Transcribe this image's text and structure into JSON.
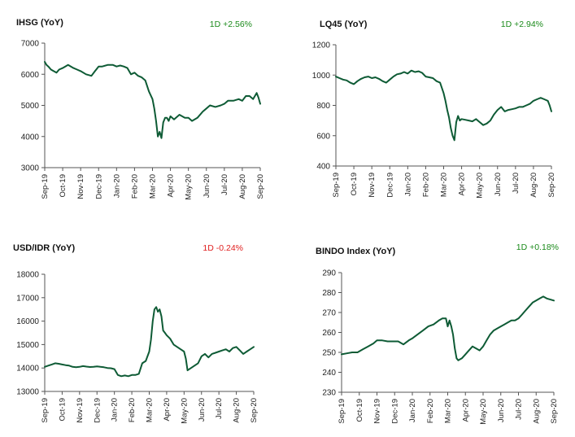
{
  "colors": {
    "line": "#0e5b35",
    "positive": "#1a8a1a",
    "negative": "#e02020"
  },
  "chart_data": [
    {
      "type": "line",
      "title": "IHSG (YoY)",
      "change_label": "1D +2.56%",
      "change_direction": "positive",
      "ylim": [
        3000,
        7000
      ],
      "yticks": [
        3000,
        4000,
        5000,
        6000,
        7000
      ],
      "xlabels": [
        "Sep-19",
        "Oct-19",
        "Nov-19",
        "Dec-19",
        "Jan-20",
        "Feb-20",
        "Mar-20",
        "Apr-20",
        "May-20",
        "Jun-20",
        "Jul-20",
        "Aug-20",
        "Sep-20"
      ],
      "series": [
        {
          "x": [
            0,
            0.1,
            0.2,
            0.35,
            0.5,
            0.65,
            0.8,
            1.0,
            1.3,
            1.6,
            1.8,
            2.0,
            2.3,
            2.6,
            2.8,
            3.0,
            3.2,
            3.5,
            3.8,
            4.0,
            4.2,
            4.4,
            4.6,
            4.8,
            5.0,
            5.2,
            5.4,
            5.6,
            5.8,
            6.0,
            6.1,
            6.2,
            6.3,
            6.4,
            6.5,
            6.6,
            6.7,
            6.8,
            6.9,
            7.0,
            7.2,
            7.5,
            7.8,
            8.0,
            8.2,
            8.5,
            8.8,
            9.0,
            9.2,
            9.5,
            9.8,
            10.0,
            10.2,
            10.5,
            10.8,
            11.0,
            11.2,
            11.4,
            11.6,
            11.8,
            11.9,
            12.0
          ],
          "y": [
            6400,
            6300,
            6250,
            6150,
            6100,
            6050,
            6150,
            6200,
            6300,
            6200,
            6150,
            6100,
            6000,
            5950,
            6100,
            6250,
            6250,
            6300,
            6300,
            6250,
            6280,
            6250,
            6200,
            6000,
            6050,
            5950,
            5900,
            5800,
            5450,
            5200,
            4900,
            4500,
            4000,
            4150,
            3950,
            4450,
            4600,
            4600,
            4500,
            4650,
            4550,
            4700,
            4600,
            4600,
            4500,
            4600,
            4800,
            4900,
            5000,
            4950,
            5000,
            5050,
            5150,
            5150,
            5200,
            5150,
            5300,
            5300,
            5200,
            5400,
            5250,
            5050
          ]
        }
      ]
    },
    {
      "type": "line",
      "title": "LQ45 (YoY)",
      "change_label": "1D +2.94%",
      "change_direction": "positive",
      "ylim": [
        400,
        1200
      ],
      "yticks": [
        400,
        600,
        800,
        1000,
        1200
      ],
      "xlabels": [
        "Sep-19",
        "Oct-19",
        "Nov-19",
        "Dec-19",
        "Jan-20",
        "Feb-20",
        "Mar-20",
        "Apr-20",
        "May-20",
        "Jun-20",
        "Jul-20",
        "Aug-20",
        "Sep-20"
      ],
      "series": [
        {
          "x": [
            0,
            0.2,
            0.4,
            0.6,
            0.8,
            1.0,
            1.2,
            1.4,
            1.6,
            1.8,
            2.0,
            2.2,
            2.4,
            2.6,
            2.8,
            3.0,
            3.2,
            3.4,
            3.6,
            3.8,
            4.0,
            4.2,
            4.4,
            4.6,
            4.8,
            5.0,
            5.2,
            5.4,
            5.6,
            5.8,
            6.0,
            6.1,
            6.2,
            6.3,
            6.4,
            6.5,
            6.6,
            6.7,
            6.8,
            6.9,
            7.0,
            7.2,
            7.4,
            7.6,
            7.8,
            8.0,
            8.2,
            8.4,
            8.6,
            8.8,
            9.0,
            9.2,
            9.4,
            9.6,
            9.8,
            10.0,
            10.2,
            10.4,
            10.6,
            10.8,
            11.0,
            11.2,
            11.4,
            11.6,
            11.8,
            11.9,
            12.0
          ],
          "y": [
            990,
            980,
            970,
            965,
            950,
            940,
            960,
            975,
            985,
            990,
            980,
            985,
            975,
            960,
            950,
            970,
            990,
            1005,
            1010,
            1020,
            1010,
            1030,
            1020,
            1025,
            1015,
            990,
            985,
            980,
            960,
            950,
            880,
            830,
            770,
            720,
            650,
            600,
            570,
            690,
            730,
            700,
            710,
            705,
            700,
            695,
            710,
            690,
            670,
            680,
            700,
            740,
            770,
            790,
            760,
            770,
            775,
            780,
            790,
            790,
            800,
            810,
            830,
            840,
            850,
            840,
            830,
            800,
            760
          ]
        }
      ]
    },
    {
      "type": "line",
      "title": "USD/IDR  (YoY)",
      "change_label": "1D -0.24%",
      "change_direction": "negative",
      "ylim": [
        13000,
        18000
      ],
      "yticks": [
        13000,
        14000,
        15000,
        16000,
        17000,
        18000
      ],
      "xlabels": [
        "Sep-19",
        "Oct-19",
        "Nov-19",
        "Dec-19",
        "Jan-20",
        "Feb-20",
        "Mar-20",
        "Apr-20",
        "May-20",
        "Jun-20",
        "Jul-20",
        "Aug-20",
        "Sep-20"
      ],
      "series": [
        {
          "x": [
            0,
            0.2,
            0.4,
            0.6,
            0.8,
            1.0,
            1.2,
            1.4,
            1.6,
            1.8,
            2.0,
            2.2,
            2.4,
            2.6,
            2.8,
            3.0,
            3.2,
            3.4,
            3.6,
            3.8,
            4.0,
            4.2,
            4.4,
            4.6,
            4.8,
            5.0,
            5.2,
            5.4,
            5.6,
            5.8,
            6.0,
            6.1,
            6.2,
            6.3,
            6.4,
            6.5,
            6.6,
            6.7,
            6.8,
            6.9,
            7.0,
            7.2,
            7.4,
            7.6,
            7.8,
            8.0,
            8.1,
            8.2,
            8.4,
            8.6,
            8.8,
            9.0,
            9.2,
            9.4,
            9.6,
            9.8,
            10.0,
            10.2,
            10.4,
            10.6,
            10.8,
            11.0,
            11.2,
            11.4,
            11.6,
            11.8,
            12.0
          ],
          "y": [
            14050,
            14100,
            14150,
            14200,
            14180,
            14150,
            14120,
            14100,
            14050,
            14030,
            14050,
            14080,
            14060,
            14040,
            14050,
            14070,
            14050,
            14030,
            14000,
            13990,
            13950,
            13700,
            13650,
            13680,
            13650,
            13700,
            13700,
            13750,
            14200,
            14300,
            14700,
            15200,
            16000,
            16500,
            16600,
            16400,
            16500,
            16200,
            15600,
            15500,
            15400,
            15250,
            15000,
            14900,
            14800,
            14700,
            14400,
            13900,
            14000,
            14100,
            14200,
            14500,
            14600,
            14450,
            14600,
            14650,
            14700,
            14750,
            14800,
            14700,
            14850,
            14900,
            14750,
            14600,
            14700,
            14800,
            14900
          ]
        }
      ]
    },
    {
      "type": "line",
      "title": "BINDO Index (YoY)",
      "change_label": "1D +0.18%",
      "change_direction": "positive",
      "ylim": [
        230,
        290
      ],
      "yticks": [
        230,
        240,
        250,
        260,
        270,
        280,
        290
      ],
      "xlabels": [
        "Sep-19",
        "Oct-19",
        "Nov-19",
        "Dec-19",
        "Jan-20",
        "Feb-20",
        "Mar-20",
        "Apr-20",
        "May-20",
        "Jun-20",
        "Jul-20",
        "Aug-20",
        "Sep-20"
      ],
      "series": [
        {
          "x": [
            0,
            0.3,
            0.6,
            0.9,
            1.2,
            1.5,
            1.8,
            2.0,
            2.3,
            2.6,
            2.9,
            3.2,
            3.5,
            3.8,
            4.0,
            4.3,
            4.6,
            4.9,
            5.2,
            5.5,
            5.7,
            5.9,
            6.0,
            6.1,
            6.2,
            6.3,
            6.4,
            6.5,
            6.6,
            6.8,
            7.0,
            7.2,
            7.4,
            7.6,
            7.8,
            8.0,
            8.2,
            8.4,
            8.6,
            8.8,
            9.0,
            9.2,
            9.4,
            9.6,
            9.8,
            10.0,
            10.2,
            10.4,
            10.6,
            10.8,
            11.0,
            11.2,
            11.4,
            11.6,
            11.8,
            12.0
          ],
          "y": [
            249,
            249.5,
            250,
            250,
            251.5,
            253,
            254.5,
            256,
            256,
            255.5,
            255.5,
            255.5,
            254,
            256,
            257,
            259,
            261,
            263,
            264,
            266,
            267,
            267,
            263,
            266,
            263,
            259,
            252,
            247,
            246,
            247,
            249,
            251,
            253,
            252,
            251,
            253,
            256,
            259,
            261,
            262,
            263,
            264,
            265,
            266,
            266,
            267,
            269,
            271,
            273,
            275,
            276,
            277,
            278,
            277,
            276.5,
            276
          ]
        }
      ]
    }
  ]
}
